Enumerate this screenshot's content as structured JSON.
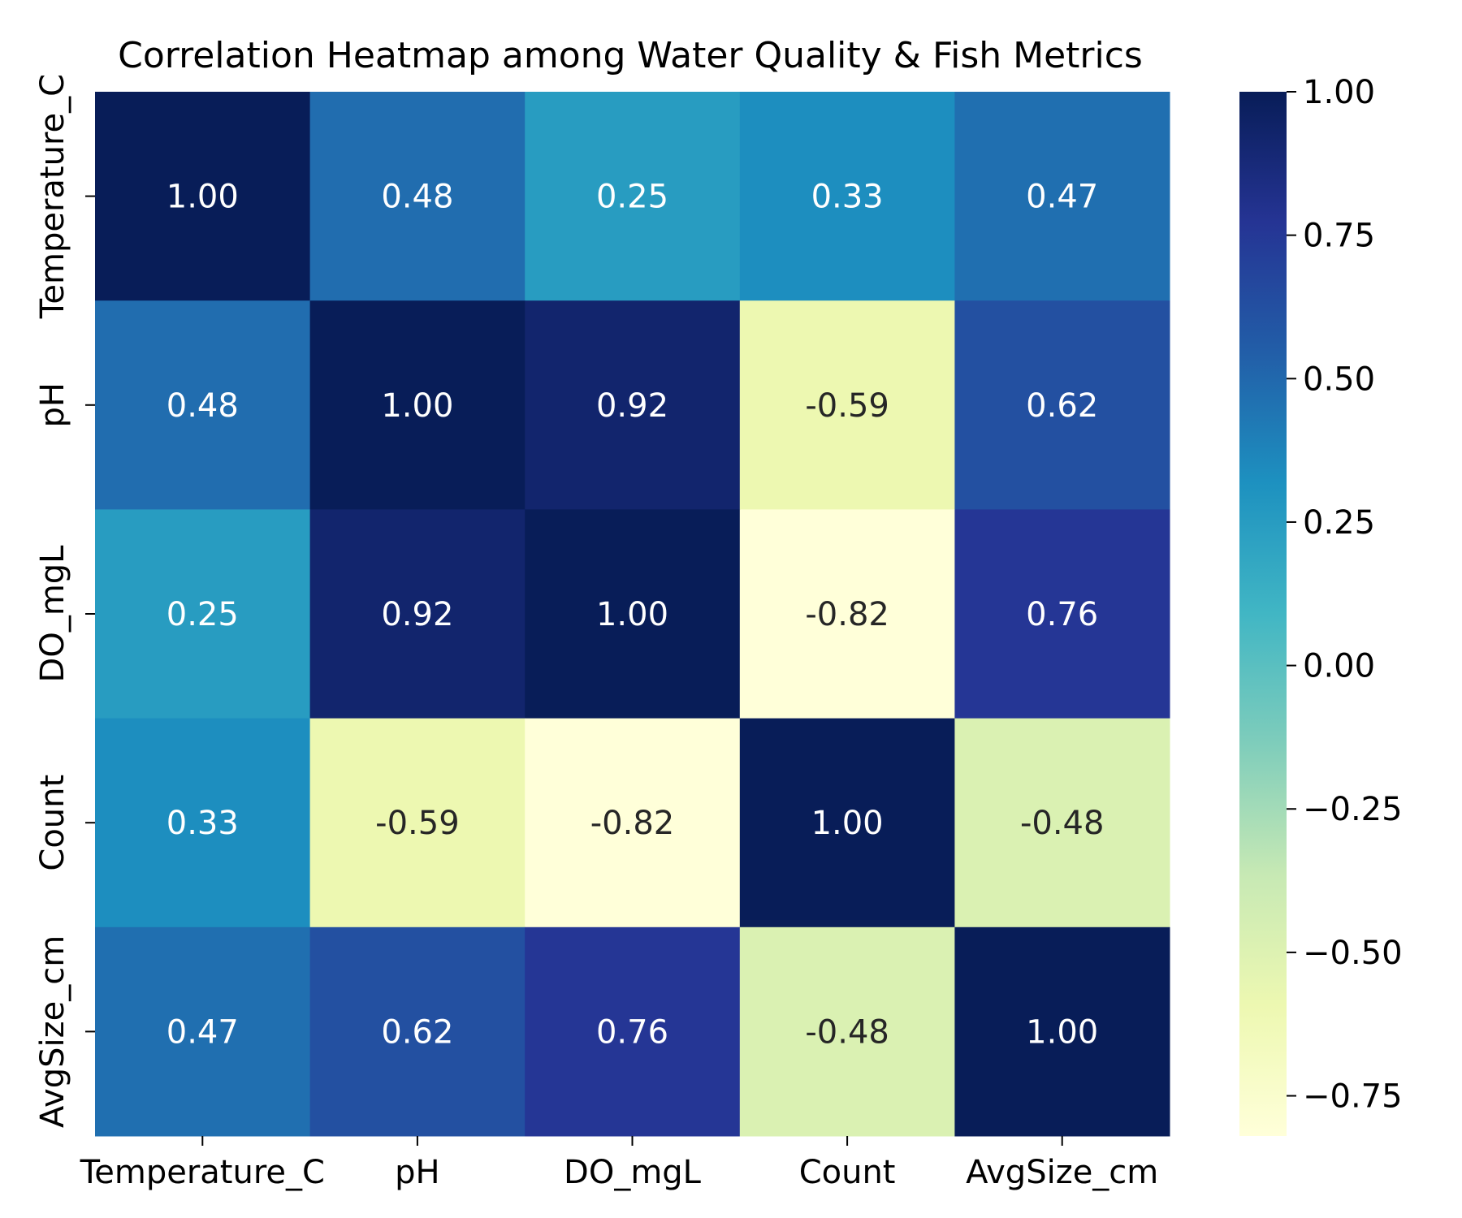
{
  "chart_data": {
    "type": "heatmap",
    "title": "Correlation Heatmap among Water Quality & Fish Metrics",
    "x_categories": [
      "Temperature_C",
      "pH",
      "DO_mgL",
      "Count",
      "AvgSize_cm"
    ],
    "y_categories": [
      "Temperature_C",
      "pH",
      "DO_mgL",
      "Count",
      "AvgSize_cm"
    ],
    "values": [
      [
        1.0,
        0.48,
        0.25,
        0.33,
        0.47
      ],
      [
        0.48,
        1.0,
        0.92,
        -0.59,
        0.62
      ],
      [
        0.25,
        0.92,
        1.0,
        -0.82,
        0.76
      ],
      [
        0.33,
        -0.59,
        -0.82,
        1.0,
        -0.48
      ],
      [
        0.47,
        0.62,
        0.76,
        -0.48,
        1.0
      ]
    ],
    "cell_labels": [
      [
        "1.00",
        "0.48",
        "0.25",
        "0.33",
        "0.47"
      ],
      [
        "0.48",
        "1.00",
        "0.92",
        "-0.59",
        "0.62"
      ],
      [
        "0.25",
        "0.92",
        "1.00",
        "-0.82",
        "0.76"
      ],
      [
        "0.33",
        "-0.59",
        "-0.82",
        "1.00",
        "-0.48"
      ],
      [
        "0.47",
        "0.62",
        "0.76",
        "-0.48",
        "1.00"
      ]
    ],
    "colorbar": {
      "range": [
        -0.82,
        1.0
      ],
      "ticks": [
        1.0,
        0.75,
        0.5,
        0.25,
        0.0,
        -0.25,
        -0.5,
        -0.75
      ],
      "tick_labels": [
        "1.00",
        "0.75",
        "0.50",
        "0.25",
        "0.00",
        "−0.25",
        "−0.50",
        "−0.75"
      ]
    },
    "colormap": "YlGnBu",
    "colormap_stops": [
      "#ffffd9",
      "#edf8b1",
      "#c7e9b4",
      "#7fcdbb",
      "#41b6c4",
      "#1d91c0",
      "#225ea8",
      "#253494",
      "#081d58"
    ],
    "text_color_dark": "#262626",
    "text_color_light": "#ffffff",
    "xlabel": "",
    "ylabel": ""
  }
}
